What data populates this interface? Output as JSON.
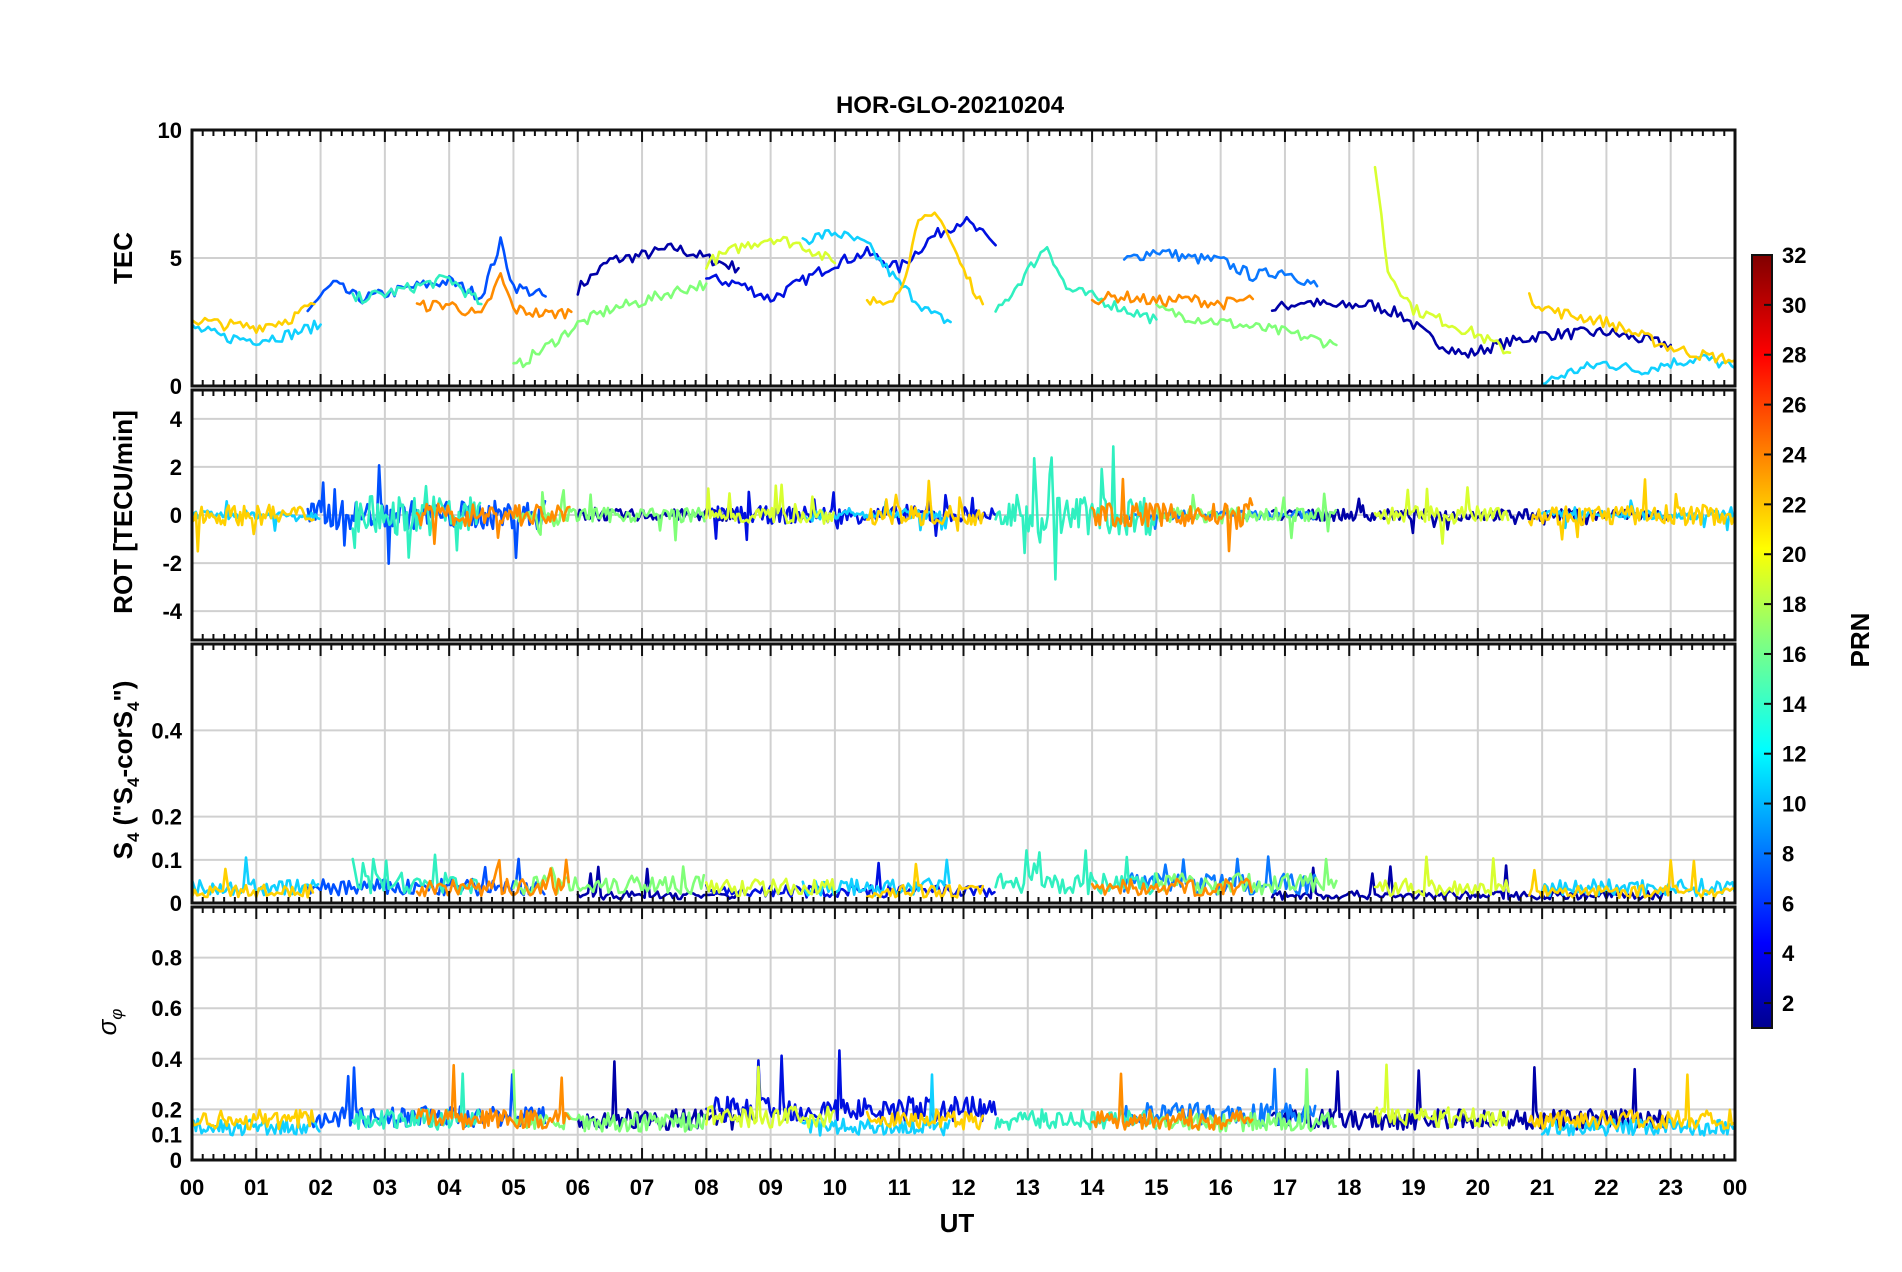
{
  "chart_data": {
    "type": "line",
    "title": "HOR-GLO-20210204",
    "xlabel": "UT",
    "x_tick_labels": [
      "00",
      "01",
      "02",
      "03",
      "04",
      "05",
      "06",
      "07",
      "08",
      "09",
      "10",
      "11",
      "12",
      "13",
      "14",
      "15",
      "16",
      "17",
      "18",
      "19",
      "20",
      "21",
      "22",
      "23",
      "00"
    ],
    "xlim": [
      0,
      24
    ],
    "grid": true,
    "panels": [
      {
        "id": "tec",
        "ylabel": "TEC",
        "ylim": [
          0,
          10
        ],
        "yticks": [
          0,
          5,
          10
        ],
        "ytick_labels": [
          "0",
          "5",
          "10"
        ]
      },
      {
        "id": "rot",
        "ylabel": "ROT [TECU/min]",
        "ylim": [
          -5.2,
          5.2
        ],
        "yticks": [
          -4,
          -2,
          0,
          2,
          4
        ],
        "ytick_labels": [
          "-4",
          "-2",
          "0",
          "2",
          "4"
        ]
      },
      {
        "id": "s4",
        "ylabel": "S4 (\"S4-corS4\")",
        "ylabel_parts": {
          "s": "S",
          "sub1": "4",
          "mid": " (\"S",
          "sub2": "4",
          "mid2": "-corS",
          "sub3": "4",
          "end": "\")"
        },
        "ylim": [
          0,
          0.6
        ],
        "yticks": [
          0,
          0.1,
          0.2,
          0.4
        ],
        "ytick_labels": [
          "0",
          "0.1",
          "0.2",
          "0.4"
        ]
      },
      {
        "id": "sigma",
        "ylabel": "σφ",
        "ylabel_parts": {
          "base": "σ",
          "sub": "φ"
        },
        "ylim": [
          0,
          1.0
        ],
        "yticks": [
          0,
          0.1,
          0.2,
          0.4,
          0.6,
          0.8
        ],
        "ytick_labels": [
          "0",
          "0.1",
          "0.2",
          "0.4",
          "0.6",
          "0.8"
        ]
      }
    ],
    "colorbar": {
      "label": "PRN",
      "range": [
        1,
        32
      ],
      "tick_labels": [
        "2",
        "4",
        "6",
        "8",
        "10",
        "12",
        "14",
        "16",
        "18",
        "20",
        "22",
        "24",
        "26",
        "28",
        "30",
        "32"
      ],
      "colormap": "jet"
    },
    "series": [
      {
        "prn": 1,
        "color": "#0000a8",
        "tec": [
          [
            6.0,
            3.8
          ],
          [
            6.5,
            4.9
          ],
          [
            7.0,
            5.1
          ],
          [
            7.5,
            5.4
          ],
          [
            8.0,
            5.0
          ],
          [
            8.5,
            4.6
          ]
        ],
        "tec2": [
          [
            16.8,
            3.0
          ],
          [
            17.3,
            3.3
          ],
          [
            17.8,
            3.1
          ],
          [
            18.3,
            3.2
          ],
          [
            18.8,
            2.8
          ],
          [
            19.3,
            1.8
          ],
          [
            19.8,
            1.2
          ],
          [
            20.3,
            1.6
          ],
          [
            21.0,
            2.0
          ],
          [
            22.0,
            2.1
          ],
          [
            23.0,
            1.6
          ]
        ],
        "rot_amp": 0.4,
        "s4": 0.02,
        "sig": 0.16
      },
      {
        "prn": 3,
        "color": "#0010e0",
        "tec": [
          [
            8.0,
            4.2
          ],
          [
            8.5,
            4.0
          ],
          [
            9.0,
            3.4
          ],
          [
            9.5,
            4.1
          ],
          [
            10.0,
            4.8
          ],
          [
            10.5,
            5.2
          ],
          [
            11.0,
            4.6
          ],
          [
            11.5,
            5.8
          ],
          [
            12.0,
            6.5
          ],
          [
            12.5,
            5.5
          ]
        ],
        "rot_amp": 0.6,
        "s4": 0.03,
        "sig": 0.2
      },
      {
        "prn": 5,
        "color": "#0050ff",
        "tec": [
          [
            1.8,
            3.0
          ],
          [
            2.2,
            4.0
          ],
          [
            2.6,
            3.4
          ],
          [
            3.0,
            3.6
          ],
          [
            3.5,
            3.9
          ],
          [
            4.0,
            4.1
          ],
          [
            4.5,
            3.5
          ],
          [
            4.8,
            5.6
          ],
          [
            5.0,
            3.9
          ],
          [
            5.5,
            3.5
          ]
        ],
        "rot_amp": 1.0,
        "s4": 0.04,
        "sig": 0.17
      },
      {
        "prn": 7,
        "color": "#0a78ff",
        "tec": [
          [
            14.5,
            4.9
          ],
          [
            15.0,
            5.3
          ],
          [
            15.5,
            5.0
          ],
          [
            16.0,
            4.9
          ],
          [
            16.5,
            4.3
          ],
          [
            17.0,
            4.5
          ],
          [
            17.5,
            3.9
          ]
        ],
        "rot_amp": 0.3,
        "s4": 0.05,
        "sig": 0.18
      },
      {
        "prn": 11,
        "color": "#10d0ff",
        "tec": [
          [
            0.0,
            2.3
          ],
          [
            0.5,
            1.9
          ],
          [
            1.0,
            1.8
          ],
          [
            1.5,
            2.0
          ],
          [
            2.0,
            2.4
          ]
        ],
        "tec2": [
          [
            9.5,
            5.7
          ],
          [
            10.0,
            6.0
          ],
          [
            10.5,
            5.5
          ],
          [
            11.0,
            4.0
          ],
          [
            11.5,
            2.8
          ],
          [
            11.8,
            2.5
          ]
        ],
        "tec3": [
          [
            21.0,
            0.1
          ],
          [
            21.5,
            0.6
          ],
          [
            22.0,
            0.9
          ],
          [
            22.5,
            0.6
          ],
          [
            23.0,
            0.9
          ],
          [
            23.5,
            1.1
          ],
          [
            24.0,
            0.7
          ]
        ],
        "rot_amp": 0.3,
        "s4": 0.04,
        "sig": 0.13
      },
      {
        "prn": 14,
        "color": "#30f0c0",
        "tec": [
          [
            2.5,
            3.4
          ],
          [
            3.0,
            3.6
          ],
          [
            3.5,
            3.9
          ],
          [
            4.0,
            4.2
          ],
          [
            4.5,
            3.2
          ]
        ],
        "tec2": [
          [
            12.5,
            2.8
          ],
          [
            13.0,
            4.5
          ],
          [
            13.3,
            5.5
          ],
          [
            13.6,
            3.8
          ],
          [
            14.0,
            3.5
          ],
          [
            14.5,
            3.0
          ],
          [
            15.0,
            2.6
          ]
        ],
        "rot_amp": 1.4,
        "s4": 0.05,
        "sig": 0.16
      },
      {
        "prn": 17,
        "color": "#80ff78",
        "tec": [
          [
            5.0,
            0.7
          ],
          [
            5.5,
            1.5
          ],
          [
            6.0,
            2.4
          ],
          [
            6.5,
            3.0
          ],
          [
            7.0,
            3.3
          ],
          [
            7.5,
            3.7
          ],
          [
            8.0,
            4.0
          ]
        ],
        "tec2": [
          [
            15.0,
            3.0
          ],
          [
            15.5,
            2.7
          ],
          [
            16.0,
            2.5
          ],
          [
            16.5,
            2.3
          ],
          [
            17.0,
            2.1
          ],
          [
            17.5,
            1.8
          ],
          [
            17.8,
            1.6
          ]
        ],
        "rot_amp": 0.5,
        "s4": 0.05,
        "sig": 0.15
      },
      {
        "prn": 19,
        "color": "#d8ff30",
        "tec": [
          [
            8.0,
            4.8
          ],
          [
            8.5,
            5.4
          ],
          [
            9.0,
            5.8
          ],
          [
            9.5,
            5.5
          ],
          [
            10.0,
            4.8
          ]
        ],
        "tec2": [
          [
            18.4,
            8.7
          ],
          [
            18.6,
            4.5
          ],
          [
            19.0,
            3.0
          ],
          [
            19.5,
            2.5
          ],
          [
            20.0,
            2.0
          ],
          [
            20.5,
            1.3
          ]
        ],
        "rot_amp": 0.6,
        "s4": 0.04,
        "sig": 0.17
      },
      {
        "prn": 21,
        "color": "#ffd000",
        "tec": [
          [
            0.0,
            2.6
          ],
          [
            0.5,
            2.4
          ],
          [
            1.0,
            2.3
          ],
          [
            1.5,
            2.6
          ],
          [
            1.9,
            3.2
          ]
        ],
        "tec2": [
          [
            10.5,
            3.2
          ],
          [
            11.0,
            3.6
          ],
          [
            11.3,
            6.3
          ],
          [
            11.6,
            6.8
          ],
          [
            12.0,
            4.5
          ],
          [
            12.3,
            3.2
          ]
        ],
        "tec3": [
          [
            20.8,
            3.4
          ],
          [
            21.2,
            2.9
          ],
          [
            22.0,
            2.5
          ],
          [
            22.5,
            2.0
          ],
          [
            23.0,
            1.5
          ],
          [
            23.5,
            1.2
          ],
          [
            24.0,
            1.0
          ]
        ],
        "rot_amp": 0.7,
        "s4": 0.03,
        "sig": 0.16
      },
      {
        "prn": 23,
        "color": "#ff8c00",
        "tec": [
          [
            3.5,
            3.1
          ],
          [
            4.0,
            3.2
          ],
          [
            4.5,
            2.7
          ],
          [
            4.8,
            4.3
          ],
          [
            5.0,
            3.0
          ],
          [
            5.5,
            2.8
          ],
          [
            5.9,
            2.9
          ]
        ],
        "tec2": [
          [
            14.0,
            3.4
          ],
          [
            14.5,
            3.5
          ],
          [
            15.0,
            3.3
          ],
          [
            15.5,
            3.4
          ],
          [
            16.0,
            3.2
          ],
          [
            16.5,
            3.4
          ]
        ],
        "rot_amp": 0.8,
        "s4": 0.04,
        "sig": 0.16
      }
    ]
  }
}
